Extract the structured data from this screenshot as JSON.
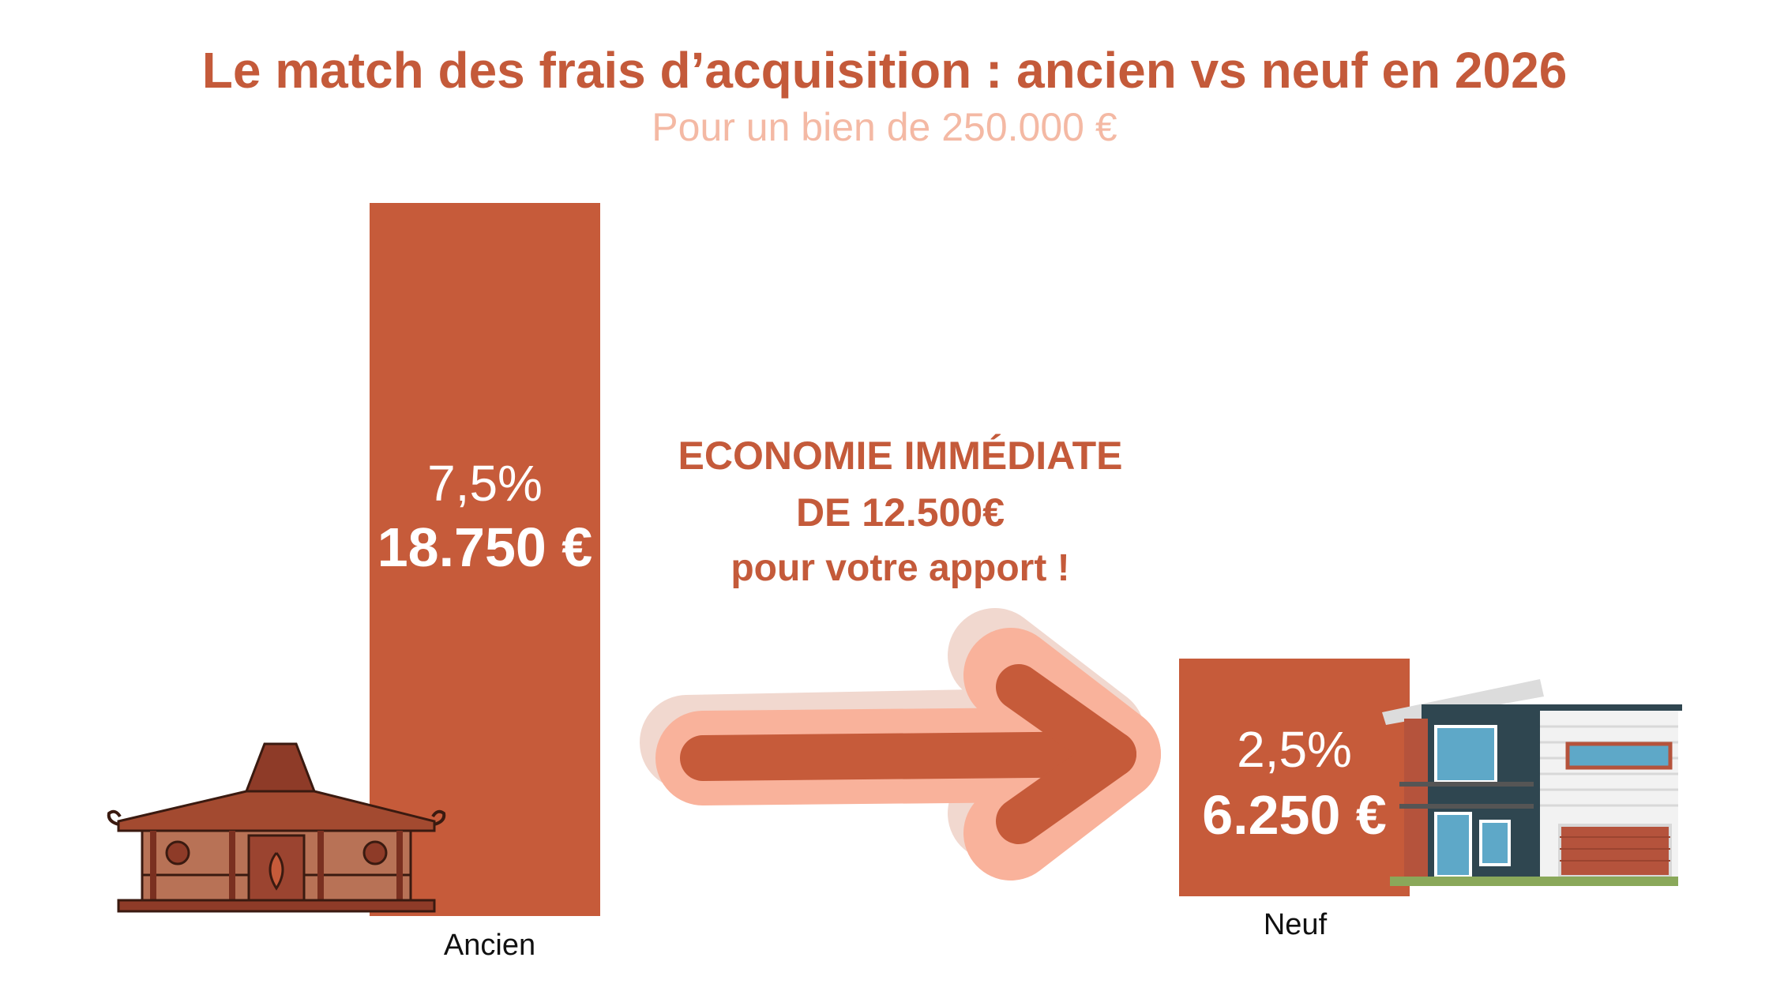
{
  "chart_data": {
    "type": "bar",
    "title": "Le match des frais d’acquisition : ancien vs neuf en 2026",
    "subtitle": "Pour un bien de 250.000 €",
    "categories": [
      "Ancien",
      "Neuf"
    ],
    "values": [
      18750,
      6250
    ],
    "percent_labels": [
      "7,5%",
      "2,5%"
    ],
    "value_labels": [
      "18.750 €",
      "6.250 €"
    ],
    "ylim": [
      0,
      18750
    ],
    "grid": false,
    "annotation": {
      "line1": "ECONOMIE IMMÉDIATE",
      "line2": "DE 12.500€",
      "line3": "pour votre apport !"
    }
  },
  "colors": {
    "bar": "#c65b3a",
    "title": "#c45a3a",
    "subtitle": "#f4b9a4",
    "arrow_outline": "#f9b29b",
    "arrow_shadow": "#f1d8cf"
  },
  "icons": [
    "traditional-house-icon",
    "modern-house-icon",
    "arrow-right-icon"
  ]
}
